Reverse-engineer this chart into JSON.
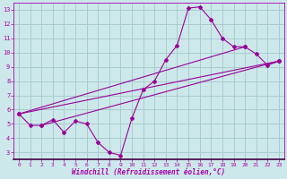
{
  "xlabel": "Windchill (Refroidissement éolien,°C)",
  "bg_color": "#cce8ea",
  "grid_color": "#aaccce",
  "line_color": "#990099",
  "axis_color": "#aa00aa",
  "xlim": [
    -0.5,
    23.5
  ],
  "ylim": [
    2.5,
    13.5
  ],
  "xticks": [
    0,
    1,
    2,
    3,
    4,
    5,
    6,
    7,
    8,
    9,
    10,
    11,
    12,
    13,
    14,
    15,
    16,
    17,
    18,
    19,
    20,
    21,
    22,
    23
  ],
  "yticks": [
    3,
    4,
    5,
    6,
    7,
    8,
    9,
    10,
    11,
    12,
    13
  ],
  "line1_x": [
    0,
    1,
    2,
    3,
    4,
    5,
    6,
    7,
    8,
    9,
    10,
    11,
    12,
    13,
    14,
    15,
    16,
    17,
    18,
    19,
    20,
    21,
    22,
    23
  ],
  "line1_y": [
    5.7,
    4.9,
    4.9,
    5.3,
    4.4,
    5.2,
    5.0,
    3.7,
    3.0,
    2.8,
    5.4,
    7.4,
    8.0,
    9.5,
    10.5,
    13.1,
    13.2,
    12.3,
    11.0,
    10.4,
    10.4,
    9.9,
    9.1,
    9.4
  ],
  "line2_x": [
    0,
    23
  ],
  "line2_y": [
    5.7,
    9.4
  ],
  "line3_x": [
    2,
    23
  ],
  "line3_y": [
    4.9,
    9.4
  ],
  "line4_x": [
    0,
    20
  ],
  "line4_y": [
    5.7,
    10.4
  ]
}
